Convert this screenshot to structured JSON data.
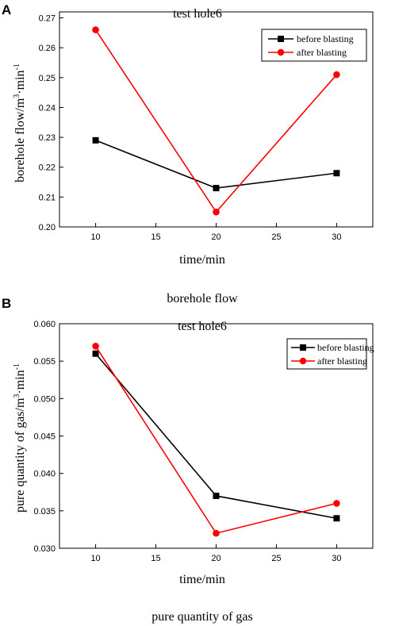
{
  "chart_data": [
    {
      "type": "line",
      "panel": "A",
      "title": "test hole6",
      "caption": "borehole flow",
      "xlabel": "time/min",
      "ylabel": {
        "base": "borehole flow/m",
        "sup1": "3",
        "mid": "·min",
        "sup2": "-1"
      },
      "x": [
        10,
        20,
        30
      ],
      "xlim": [
        7,
        33
      ],
      "xticks": [
        "10",
        "15",
        "20",
        "25",
        "30"
      ],
      "ylim": [
        0.2,
        0.272
      ],
      "yticks": [
        "0.20",
        "0.21",
        "0.22",
        "0.23",
        "0.24",
        "0.25",
        "0.26",
        "0.27"
      ],
      "legend_position": "top-right",
      "series": [
        {
          "name": "before blasting",
          "values": [
            0.229,
            0.213,
            0.218
          ],
          "color": "#000000",
          "marker": "square"
        },
        {
          "name": "after blasting",
          "values": [
            0.266,
            0.205,
            0.251
          ],
          "color": "#ff0000",
          "marker": "circle"
        }
      ]
    },
    {
      "type": "line",
      "panel": "B",
      "title": "test hole6",
      "caption": "pure quantity of gas",
      "xlabel": "time/min",
      "ylabel": {
        "base": "pure quantity of gas/m",
        "sup1": "3",
        "mid": "·min",
        "sup2": "-1"
      },
      "x": [
        10,
        20,
        30
      ],
      "xlim": [
        7,
        33
      ],
      "xticks": [
        "10",
        "15",
        "20",
        "25",
        "30"
      ],
      "ylim": [
        0.03,
        0.06
      ],
      "yticks": [
        "0.030",
        "0.035",
        "0.040",
        "0.045",
        "0.050",
        "0.055",
        "0.060"
      ],
      "legend_position": "top-right",
      "series": [
        {
          "name": "before blasting",
          "values": [
            0.056,
            0.037,
            0.034
          ],
          "color": "#000000",
          "marker": "square"
        },
        {
          "name": "after blasting",
          "values": [
            0.057,
            0.032,
            0.036
          ],
          "color": "#ff0000",
          "marker": "circle"
        }
      ]
    }
  ]
}
